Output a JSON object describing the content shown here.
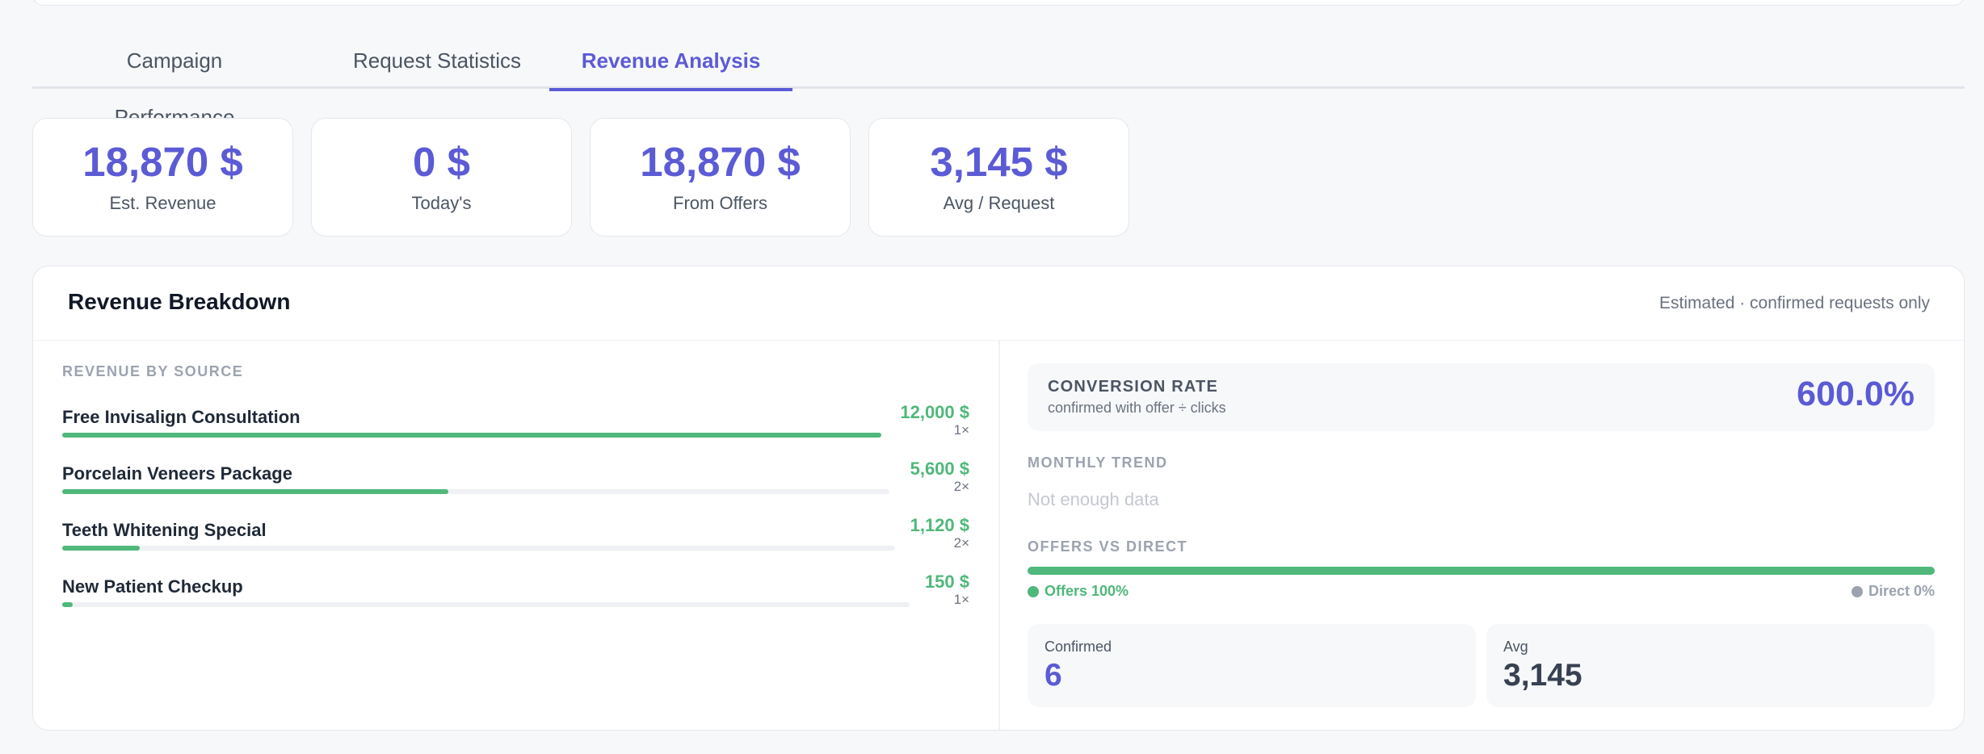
{
  "tabs": [
    {
      "label": "Campaign Performance",
      "active": false
    },
    {
      "label": "Request Statistics",
      "active": false
    },
    {
      "label": "Revenue Analysis",
      "active": true
    }
  ],
  "stats": [
    {
      "value": "18,870 $",
      "label": "Est. Revenue"
    },
    {
      "value": "0 $",
      "label": "Today's"
    },
    {
      "value": "18,870 $",
      "label": "From Offers"
    },
    {
      "value": "3,145 $",
      "label": "Avg / Request"
    }
  ],
  "breakdown": {
    "title": "Revenue Breakdown",
    "note": "Estimated · confirmed requests only",
    "source_label": "REVENUE BY SOURCE",
    "sources": [
      {
        "name": "Free Invisalign Consultation",
        "amount": "12,000 $",
        "count": "1×",
        "share": 1.0
      },
      {
        "name": "Porcelain Veneers Package",
        "amount": "5,600 $",
        "count": "2×",
        "share": 0.4667
      },
      {
        "name": "Teeth Whitening Special",
        "amount": "1,120 $",
        "count": "2×",
        "share": 0.0933
      },
      {
        "name": "New Patient Checkup",
        "amount": "150 $",
        "count": "1×",
        "share": 0.0125
      }
    ],
    "conversion": {
      "title": "CONVERSION RATE",
      "subtitle": "confirmed with offer ÷ clicks",
      "value": "600.0%"
    },
    "trend": {
      "label": "MONTHLY TREND",
      "empty_text": "Not enough data"
    },
    "offers_vs_direct": {
      "label": "OFFERS VS DIRECT",
      "offers_share": 1.0,
      "offers_text": "Offers 100%",
      "direct_text": "Direct 0%"
    },
    "confirmed": {
      "label": "Confirmed",
      "value": "6"
    },
    "avg": {
      "label": "Avg",
      "value": "3,145"
    }
  },
  "colors": {
    "accent": "#5b5bd6",
    "positive": "#4fb87a",
    "muted": "#9ca3af"
  }
}
